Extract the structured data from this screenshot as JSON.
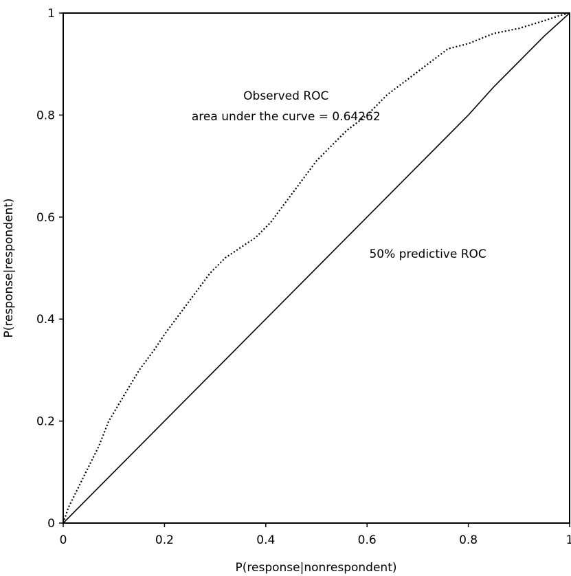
{
  "chart_data": {
    "type": "line",
    "xlabel": "P(response|nonrespondent)",
    "ylabel": "P(response|respondent)",
    "xlim": [
      0,
      1
    ],
    "ylim": [
      0,
      1
    ],
    "xticks": [
      "0",
      "0.2",
      "0.4",
      "0.6",
      "0.8",
      "1"
    ],
    "yticks": [
      "0",
      "0.2",
      "0.4",
      "0.6",
      "0.8",
      "1"
    ],
    "grid": false,
    "series": [
      {
        "style": "dotted",
        "x": [
          0,
          0.01,
          0.03,
          0.05,
          0.07,
          0.09,
          0.12,
          0.15,
          0.18,
          0.2,
          0.23,
          0.26,
          0.29,
          0.32,
          0.35,
          0.38,
          0.41,
          0.44,
          0.47,
          0.5,
          0.53,
          0.56,
          0.6,
          0.64,
          0.68,
          0.72,
          0.76,
          0.8,
          0.85,
          0.9,
          0.95,
          0.98,
          1
        ],
        "y": [
          0,
          0.03,
          0.07,
          0.11,
          0.15,
          0.2,
          0.25,
          0.3,
          0.34,
          0.37,
          0.41,
          0.45,
          0.49,
          0.52,
          0.54,
          0.56,
          0.59,
          0.63,
          0.67,
          0.71,
          0.74,
          0.77,
          0.8,
          0.84,
          0.87,
          0.9,
          0.93,
          0.94,
          0.96,
          0.97,
          0.985,
          0.995,
          1
        ]
      },
      {
        "style": "solid",
        "x": [
          0,
          0.2,
          0.4,
          0.6,
          0.8,
          0.85,
          0.9,
          0.95,
          1
        ],
        "y": [
          0,
          0.2,
          0.4,
          0.6,
          0.8,
          0.855,
          0.905,
          0.955,
          1
        ]
      }
    ],
    "annotations": [
      {
        "text": "Observed ROC",
        "x": 0.44,
        "y": 0.83
      },
      {
        "text": "area under the curve = 0.64262",
        "x": 0.44,
        "y": 0.79
      },
      {
        "text": "50% predictive ROC",
        "x": 0.72,
        "y": 0.52
      }
    ]
  }
}
